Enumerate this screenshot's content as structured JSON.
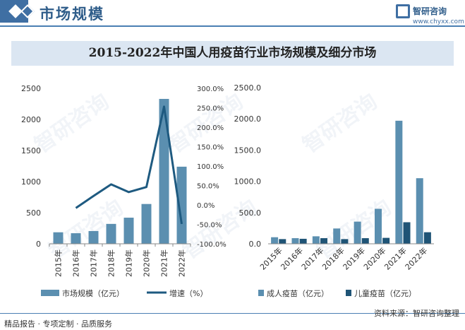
{
  "header": {
    "title": "市场规模"
  },
  "logo": {
    "name": "智研咨询",
    "url": "www.chyxx.com"
  },
  "chart_title": "2015-2022年中国人用疫苗行业市场规模及细分市场",
  "footer": {
    "left": "精品报告 · 专项定制 · 品质服务",
    "right": "资料来源：智研咨询整理"
  },
  "watermark": "智研咨询",
  "colors": {
    "bar": "#5b8fb0",
    "line": "#1e5a80",
    "dark_bar": "#1f5476",
    "accent": "#3f6fa3"
  },
  "chart_data": [
    {
      "type": "bar+line",
      "categories": [
        "2015年",
        "2016年",
        "2017年",
        "2018年",
        "2019年",
        "2020年",
        "2021年",
        "2022年"
      ],
      "series": [
        {
          "name": "市场规模（亿元）",
          "type": "bar",
          "axis": "left",
          "values": [
            185,
            170,
            205,
            320,
            420,
            640,
            2330,
            1240
          ]
        },
        {
          "name": "增速（%）",
          "type": "line",
          "axis": "right",
          "values": [
            null,
            -8.0,
            23.0,
            53.0,
            33.0,
            46.0,
            253.0,
            -49.0
          ]
        }
      ],
      "left_axis": {
        "ticks": [
          "0",
          "500",
          "1000",
          "1500",
          "2000",
          "2500"
        ],
        "range": [
          0,
          2500
        ]
      },
      "right_axis": {
        "ticks": [
          "-100.0%",
          "-50.0%",
          "0.0%",
          "50.0%",
          "100.0%",
          "150.0%",
          "200.0%",
          "250.0%",
          "300.0%"
        ],
        "range": [
          -100,
          300
        ]
      },
      "legend": "bottom"
    },
    {
      "type": "bar",
      "categories": [
        "2015年",
        "2016年",
        "2017年",
        "2018年",
        "2019年",
        "2020年",
        "2021年",
        "2022年"
      ],
      "series": [
        {
          "name": "成人疫苗（亿元）",
          "values": [
            105,
            90,
            120,
            245,
            355,
            560,
            1970,
            1050
          ]
        },
        {
          "name": "儿童疫苗（亿元）",
          "values": [
            75,
            80,
            90,
            75,
            90,
            95,
            345,
            185
          ]
        }
      ],
      "y_axis": {
        "ticks": [
          "0.0",
          "500.0",
          "1000.0",
          "1500.0",
          "2000.0",
          "2500.0"
        ],
        "range": [
          0,
          2500
        ]
      },
      "legend": "bottom"
    }
  ]
}
